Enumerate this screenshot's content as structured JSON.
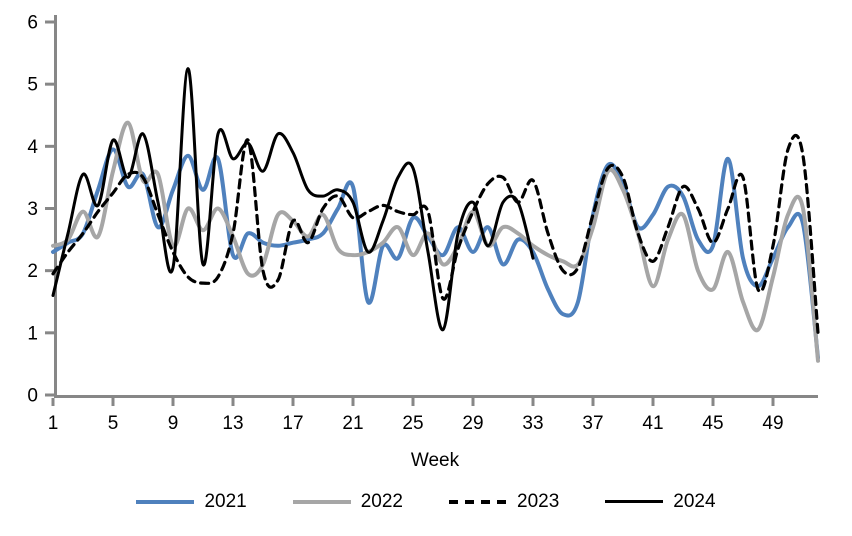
{
  "chart_data": {
    "type": "line",
    "title": "",
    "xlabel": "Week",
    "ylabel": "",
    "xlim": [
      1,
      52
    ],
    "ylim": [
      0,
      6
    ],
    "x_ticks": [
      1,
      5,
      9,
      13,
      17,
      21,
      25,
      29,
      33,
      37,
      41,
      45,
      49
    ],
    "y_ticks": [
      0,
      1,
      2,
      3,
      4,
      5,
      6
    ],
    "grid": false,
    "legend_position": "bottom",
    "axis_color": "#878787",
    "text_color": "#000000",
    "series": [
      {
        "name": "2021",
        "color": "#4F81BD",
        "style": "solid",
        "width": 4,
        "start_week": 1,
        "values": [
          2.3,
          2.45,
          2.6,
          3.3,
          3.95,
          3.35,
          3.55,
          2.7,
          3.3,
          3.85,
          3.3,
          3.8,
          2.25,
          2.6,
          2.45,
          2.4,
          2.45,
          2.5,
          2.6,
          3.0,
          3.35,
          1.5,
          2.4,
          2.2,
          2.85,
          2.55,
          2.25,
          2.7,
          2.3,
          2.7,
          2.1,
          2.5,
          2.3,
          1.7,
          1.3,
          1.5,
          2.9,
          3.7,
          3.4,
          2.7,
          2.9,
          3.35,
          3.2,
          2.5,
          2.4,
          3.8,
          2.2,
          1.75,
          2.2,
          2.7,
          2.75,
          0.6
        ]
      },
      {
        "name": "2022",
        "color": "#A6A6A6",
        "style": "solid",
        "width": 4,
        "start_week": 1,
        "values": [
          2.4,
          2.5,
          2.95,
          2.55,
          3.6,
          4.38,
          3.45,
          3.55,
          2.4,
          3.0,
          2.65,
          3.0,
          2.55,
          1.95,
          2.1,
          2.9,
          2.8,
          2.55,
          2.9,
          2.35,
          2.25,
          2.3,
          2.45,
          2.7,
          2.25,
          2.6,
          2.1,
          2.4,
          2.95,
          2.4,
          2.7,
          2.6,
          2.4,
          2.25,
          2.15,
          2.1,
          2.7,
          3.6,
          3.3,
          2.6,
          1.75,
          2.5,
          2.9,
          2.0,
          1.7,
          2.3,
          1.5,
          1.05,
          1.9,
          2.9,
          3.0,
          0.55
        ]
      },
      {
        "name": "2023",
        "color": "#000000",
        "style": "dashed",
        "width": 3.2,
        "start_week": 1,
        "values": [
          1.95,
          2.3,
          2.6,
          2.95,
          3.25,
          3.55,
          3.5,
          2.9,
          2.3,
          1.9,
          1.8,
          1.9,
          2.6,
          4.1,
          2.0,
          1.85,
          2.8,
          2.45,
          3.0,
          3.2,
          2.85,
          2.95,
          3.05,
          2.95,
          2.9,
          2.95,
          1.55,
          2.35,
          2.95,
          3.4,
          3.5,
          3.1,
          3.45,
          2.6,
          2.0,
          2.05,
          2.9,
          3.65,
          3.5,
          2.6,
          2.15,
          2.7,
          3.35,
          3.0,
          2.45,
          3.0,
          3.5,
          1.7,
          2.4,
          3.95,
          3.85,
          1.0
        ]
      },
      {
        "name": "2024",
        "color": "#000000",
        "style": "solid",
        "width": 3,
        "start_week": 1,
        "values": [
          1.6,
          2.6,
          3.55,
          3.05,
          4.1,
          3.5,
          4.2,
          3.1,
          2.05,
          5.25,
          2.1,
          4.2,
          3.8,
          4.05,
          3.6,
          4.2,
          3.9,
          3.3,
          3.2,
          3.3,
          3.1,
          2.3,
          2.8,
          3.5,
          3.65,
          2.3,
          1.05,
          2.6,
          3.1,
          2.4,
          3.1,
          3.1,
          2.2
        ]
      }
    ]
  }
}
